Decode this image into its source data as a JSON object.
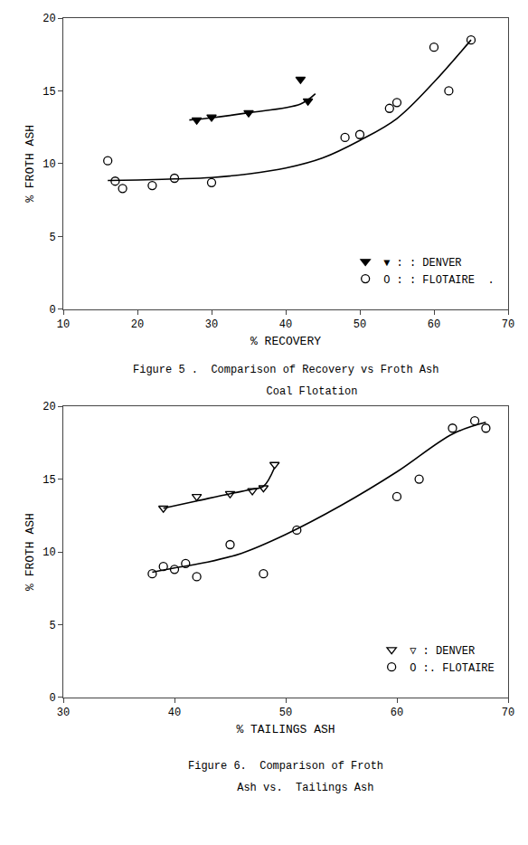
{
  "chart_data": [
    {
      "type": "scatter",
      "xlabel": "% RECOVERY",
      "ylabel": "% FROTH ASH",
      "annotations": [
        "Figure 5 .  Comparison of Recovery vs Froth Ash",
        "        Coal Flotation"
      ],
      "xlim": [
        10,
        70
      ],
      "ylim": [
        0,
        20
      ],
      "xticks": [
        10,
        20,
        30,
        40,
        50,
        60,
        70
      ],
      "yticks": [
        0,
        5,
        10,
        15,
        20
      ],
      "grid": false,
      "legend": "lower right",
      "series": [
        {
          "name": "▼ : : DENVER",
          "type": "scatter",
          "marker": "triangle-down",
          "color": "#000000",
          "x": [
            28,
            30,
            35,
            42,
            43
          ],
          "values": [
            13.0,
            13.2,
            13.5,
            15.8,
            14.3
          ]
        },
        {
          "name": "O : : FLOTAIRE  .",
          "type": "scatter",
          "marker": "circle-open",
          "color": "#000000",
          "x": [
            16,
            17,
            18,
            22,
            25,
            30,
            48,
            50,
            54,
            55,
            60,
            62,
            65
          ],
          "values": [
            10.2,
            8.8,
            8.3,
            8.5,
            9.0,
            8.7,
            11.8,
            12.0,
            13.8,
            14.2,
            18.0,
            15.0,
            18.5
          ]
        },
        {
          "type": "line",
          "line_style": "solid",
          "color": "#000000",
          "x": [
            27,
            30,
            35,
            42,
            44
          ],
          "values": [
            13.0,
            13.15,
            13.5,
            14.1,
            14.8
          ]
        },
        {
          "type": "line",
          "line_style": "solid",
          "color": "#000000",
          "x": [
            16,
            20,
            25,
            30,
            35,
            40,
            45,
            50,
            55,
            60,
            65
          ],
          "values": [
            8.85,
            8.88,
            8.95,
            9.05,
            9.3,
            9.7,
            10.4,
            11.6,
            13.1,
            15.6,
            18.5
          ]
        }
      ]
    },
    {
      "type": "scatter",
      "xlabel": "% TAILINGS ASH",
      "ylabel": "% FROTH ASH",
      "annotations": [
        "Figure 6.  Comparison of Froth",
        "      Ash vs.  Tailings Ash"
      ],
      "xlim": [
        30,
        70
      ],
      "ylim": [
        0,
        20
      ],
      "xticks": [
        30,
        40,
        50,
        60,
        70
      ],
      "yticks": [
        0,
        5,
        10,
        15,
        20
      ],
      "grid": false,
      "legend": "lower right",
      "series": [
        {
          "name": "▽ : DENVER",
          "type": "scatter",
          "marker": "triangle-down-open",
          "color": "#000000",
          "x": [
            39,
            42,
            45,
            47,
            48,
            49
          ],
          "values": [
            13.0,
            13.8,
            14.0,
            14.2,
            14.4,
            16.0
          ]
        },
        {
          "name": "O :. FLOTAIRE",
          "type": "scatter",
          "marker": "circle-open",
          "color": "#000000",
          "x": [
            38,
            39,
            40,
            41,
            42,
            45,
            48,
            51,
            60,
            62,
            65,
            67,
            68
          ],
          "values": [
            8.5,
            9.0,
            8.8,
            9.2,
            8.3,
            10.5,
            8.5,
            11.5,
            13.8,
            15.0,
            18.5,
            19.0,
            18.5
          ]
        },
        {
          "type": "line",
          "line_style": "solid",
          "color": "#000000",
          "x": [
            39,
            42,
            45,
            47,
            48,
            49
          ],
          "values": [
            13.0,
            13.5,
            14.0,
            14.3,
            14.5,
            15.8
          ]
        },
        {
          "type": "line",
          "line_style": "solid",
          "color": "#000000",
          "x": [
            38,
            40,
            43,
            46,
            50,
            55,
            60,
            65,
            68
          ],
          "values": [
            8.6,
            8.9,
            9.3,
            9.9,
            11.2,
            13.2,
            15.5,
            18.1,
            18.9
          ]
        }
      ]
    }
  ]
}
